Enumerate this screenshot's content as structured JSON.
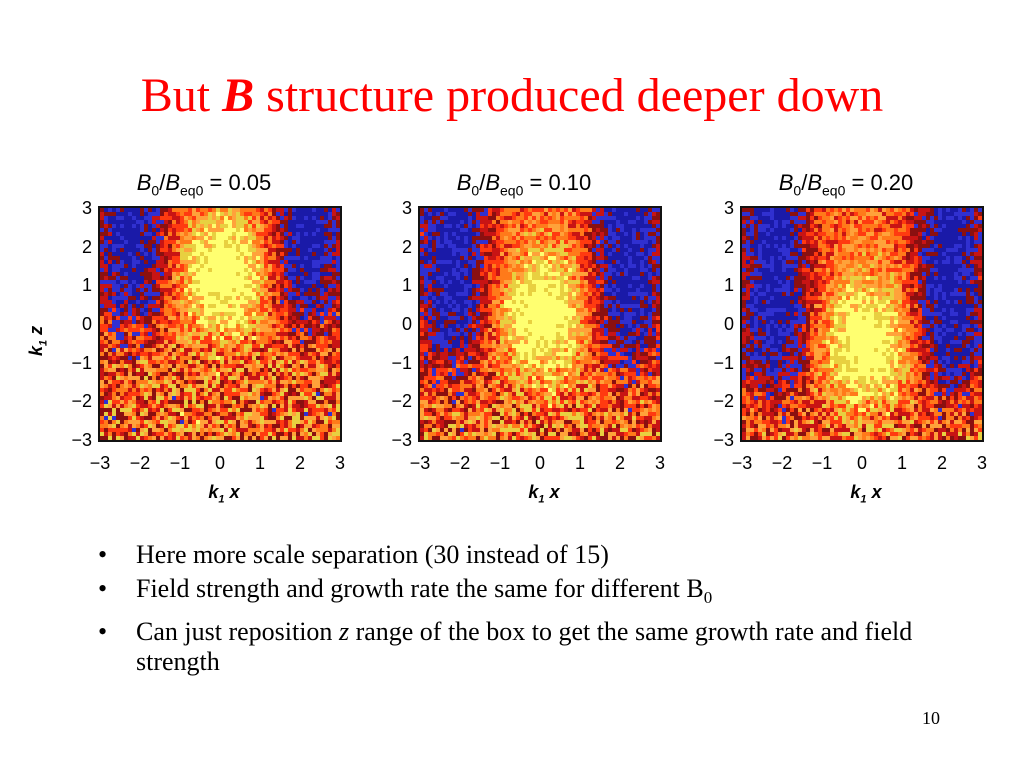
{
  "slide": {
    "title_pre": "But ",
    "title_symbol": "B",
    "title_post": " structure produced deeper down",
    "page_number": "10"
  },
  "figure": {
    "y_axis_label_main": "k",
    "y_axis_label_sub": "1",
    "y_axis_label_var": "z",
    "x_axis_label_main": "k",
    "x_axis_label_sub": "1",
    "x_axis_label_var": "x",
    "y_ticks": [
      "3",
      "2",
      "1",
      "0",
      "−1",
      "−2",
      "−3"
    ],
    "x_ticks": [
      "−3",
      "−2",
      "−1",
      "0",
      "1",
      "2",
      "3"
    ],
    "panel_title_num": "B",
    "panel_title_num_sub": "0",
    "panel_title_den": "B",
    "panel_title_den_sub": "eq0",
    "panels": [
      {
        "value": "0.05",
        "center_z": 1.3
      },
      {
        "value": "0.10",
        "center_z": 0.2
      },
      {
        "value": "0.20",
        "center_z": -0.5
      }
    ],
    "colormap": [
      "#1a1aa8",
      "#3030d0",
      "#8a1010",
      "#c81414",
      "#ff3a10",
      "#ff7a1a",
      "#ffa23a",
      "#e8d040",
      "#ffff70"
    ]
  },
  "bullets": [
    {
      "text": "Here more scale separation (30 instead of 15)"
    },
    {
      "text": "Field strength and growth rate the same for different B",
      "sub": "0"
    },
    {
      "text_pre": "Can just reposition ",
      "italic": "z",
      "text_post": " range of the box to get the same growth rate and field strength"
    }
  ]
}
